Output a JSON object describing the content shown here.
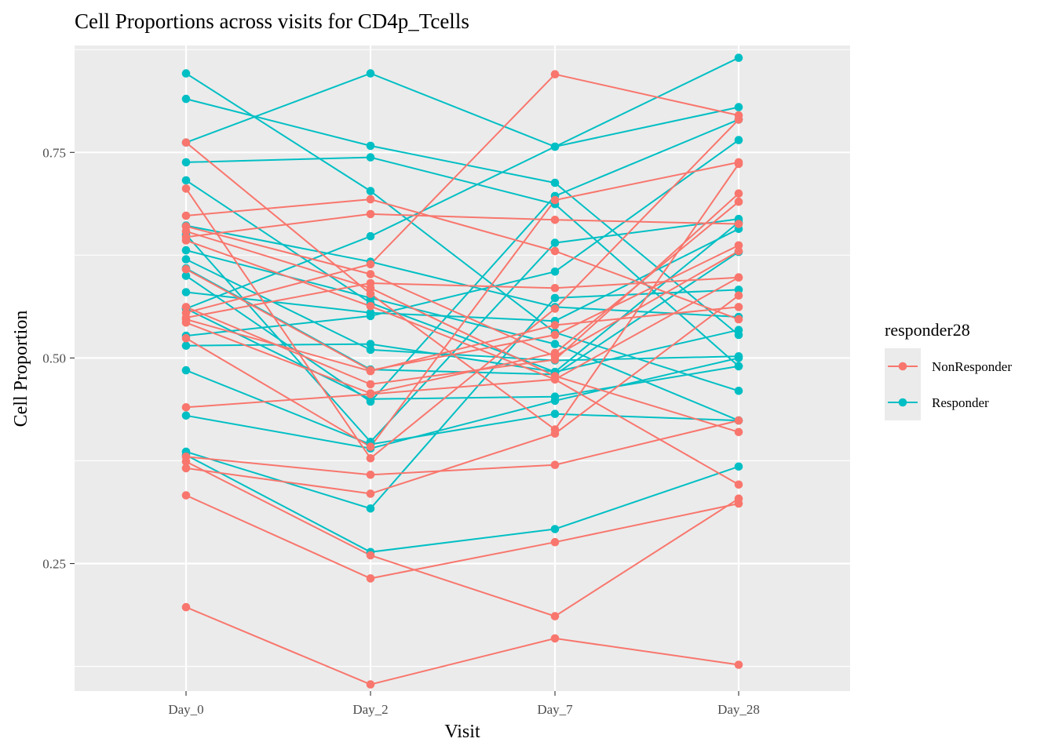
{
  "chart_data": {
    "type": "line",
    "title": "Cell Proportions across visits for CD4p_Tcells",
    "xlabel": "Visit",
    "ylabel": "Cell Proportion",
    "categories": [
      "Day_0",
      "Day_2",
      "Day_7",
      "Day_28"
    ],
    "ylim": [
      0.095,
      0.88
    ],
    "y_ticks": [
      0.25,
      0.5,
      0.75
    ],
    "y_tick_labels": [
      "0.25",
      "0.50",
      "0.75"
    ],
    "grid": true,
    "legend": {
      "title": "responder28",
      "position": "right",
      "entries": [
        {
          "name": "NonResponder",
          "color": "#F8766D"
        },
        {
          "name": "Responder",
          "color": "#00BFC4"
        }
      ]
    },
    "series": [
      {
        "name": "Responder",
        "values": [
          0.846,
          0.703,
          0.531,
          0.46
        ]
      },
      {
        "name": "Responder",
        "values": [
          0.815,
          0.758,
          0.713,
          0.528
        ]
      },
      {
        "name": "Responder",
        "values": [
          0.762,
          0.846,
          0.757,
          0.805
        ]
      },
      {
        "name": "Responder",
        "values": [
          0.738,
          0.744,
          0.687,
          0.49
        ]
      },
      {
        "name": "Responder",
        "values": [
          0.716,
          0.567,
          0.483,
          0.534
        ]
      },
      {
        "name": "Responder",
        "values": [
          0.661,
          0.617,
          0.562,
          0.55
        ]
      },
      {
        "name": "Responder",
        "values": [
          0.631,
          0.573,
          0.517,
          0.424
        ]
      },
      {
        "name": "Responder",
        "values": [
          0.62,
          0.51,
          0.497,
          0.502
        ]
      },
      {
        "name": "Responder",
        "values": [
          0.609,
          0.486,
          0.48,
          0.629
        ]
      },
      {
        "name": "Responder",
        "values": [
          0.58,
          0.555,
          0.545,
          0.657
        ]
      },
      {
        "name": "Responder",
        "values": [
          0.56,
          0.45,
          0.453,
          0.49
        ]
      },
      {
        "name": "Responder",
        "values": [
          0.515,
          0.517,
          0.483,
          0.665
        ]
      },
      {
        "name": "Responder",
        "values": [
          0.485,
          0.395,
          0.432,
          0.424
        ]
      },
      {
        "name": "Responder",
        "values": [
          0.43,
          0.39,
          0.448,
          0.5
        ]
      },
      {
        "name": "Responder",
        "values": [
          0.386,
          0.317,
          0.573,
          0.583
        ]
      },
      {
        "name": "Responder",
        "values": [
          0.382,
          0.264,
          0.292,
          0.368
        ]
      },
      {
        "name": "Responder",
        "values": [
          0.527,
          0.551,
          0.605,
          0.765
        ]
      },
      {
        "name": "Responder",
        "values": [
          0.56,
          0.648,
          0.757,
          0.865
        ]
      },
      {
        "name": "Responder",
        "values": [
          0.6,
          0.447,
          0.697,
          0.79
        ]
      },
      {
        "name": "Responder",
        "values": [
          0.65,
          0.398,
          0.64,
          0.669
        ]
      },
      {
        "name": "NonResponder",
        "values": [
          0.762,
          0.578,
          0.413,
          0.736
        ]
      },
      {
        "name": "NonResponder",
        "values": [
          0.706,
          0.378,
          0.56,
          0.79
        ]
      },
      {
        "name": "NonResponder",
        "values": [
          0.673,
          0.693,
          0.63,
          0.547
        ]
      },
      {
        "name": "NonResponder",
        "values": [
          0.66,
          0.602,
          0.502,
          0.63
        ]
      },
      {
        "name": "NonResponder",
        "values": [
          0.654,
          0.585,
          0.478,
          0.41
        ]
      },
      {
        "name": "NonResponder",
        "values": [
          0.647,
          0.675,
          0.668,
          0.663
        ]
      },
      {
        "name": "NonResponder",
        "values": [
          0.643,
          0.563,
          0.474,
          0.598
        ]
      },
      {
        "name": "NonResponder",
        "values": [
          0.608,
          0.485,
          0.528,
          0.637
        ]
      },
      {
        "name": "NonResponder",
        "values": [
          0.562,
          0.468,
          0.498,
          0.7
        ]
      },
      {
        "name": "NonResponder",
        "values": [
          0.555,
          0.614,
          0.845,
          0.795
        ]
      },
      {
        "name": "NonResponder",
        "values": [
          0.549,
          0.591,
          0.585,
          0.598
        ]
      },
      {
        "name": "NonResponder",
        "values": [
          0.547,
          0.484,
          0.54,
          0.562
        ]
      },
      {
        "name": "NonResponder",
        "values": [
          0.543,
          0.457,
          0.506,
          0.69
        ]
      },
      {
        "name": "NonResponder",
        "values": [
          0.524,
          0.392,
          0.692,
          0.738
        ]
      },
      {
        "name": "NonResponder",
        "values": [
          0.44,
          0.456,
          0.474,
          0.346
        ]
      },
      {
        "name": "NonResponder",
        "values": [
          0.38,
          0.358,
          0.37,
          0.424
        ]
      },
      {
        "name": "NonResponder",
        "values": [
          0.374,
          0.26,
          0.186,
          0.329
        ]
      },
      {
        "name": "NonResponder",
        "values": [
          0.366,
          0.335,
          0.408,
          0.576
        ]
      },
      {
        "name": "NonResponder",
        "values": [
          0.333,
          0.232,
          0.276,
          0.323
        ]
      },
      {
        "name": "NonResponder",
        "values": [
          0.197,
          0.103,
          0.159,
          0.127
        ]
      }
    ]
  }
}
